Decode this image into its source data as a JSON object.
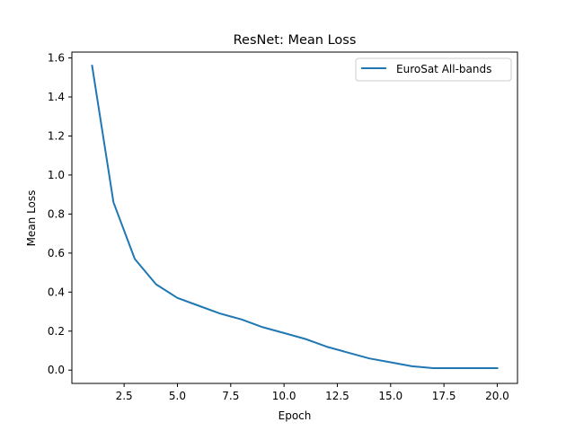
{
  "chart_data": {
    "type": "line",
    "title": "ResNet: Mean Loss",
    "xlabel": "Epoch",
    "ylabel": "Mean Loss",
    "xlim": [
      0.05,
      20.95
    ],
    "ylim": [
      -0.068,
      1.63
    ],
    "xticks": [
      2.5,
      5.0,
      7.5,
      10.0,
      12.5,
      15.0,
      17.5,
      20.0
    ],
    "xtick_labels": [
      "2.5",
      "5.0",
      "7.5",
      "10.0",
      "12.5",
      "15.0",
      "17.5",
      "20.0"
    ],
    "yticks": [
      0.0,
      0.2,
      0.4,
      0.6,
      0.8,
      1.0,
      1.2,
      1.4,
      1.6
    ],
    "ytick_labels": [
      "0.0",
      "0.2",
      "0.4",
      "0.6",
      "0.8",
      "1.0",
      "1.2",
      "1.4",
      "1.6"
    ],
    "grid": false,
    "legend_position": "upper right",
    "series": [
      {
        "name": "EuroSat All-bands",
        "color": "#1f77b4",
        "x": [
          1,
          2,
          3,
          4,
          5,
          6,
          7,
          8,
          9,
          10,
          11,
          12,
          13,
          14,
          15,
          16,
          17,
          18,
          19,
          20
        ],
        "y": [
          1.56,
          0.86,
          0.57,
          0.44,
          0.37,
          0.33,
          0.29,
          0.26,
          0.22,
          0.19,
          0.16,
          0.12,
          0.09,
          0.06,
          0.04,
          0.02,
          0.01,
          0.01,
          0.01,
          0.01
        ]
      }
    ]
  }
}
